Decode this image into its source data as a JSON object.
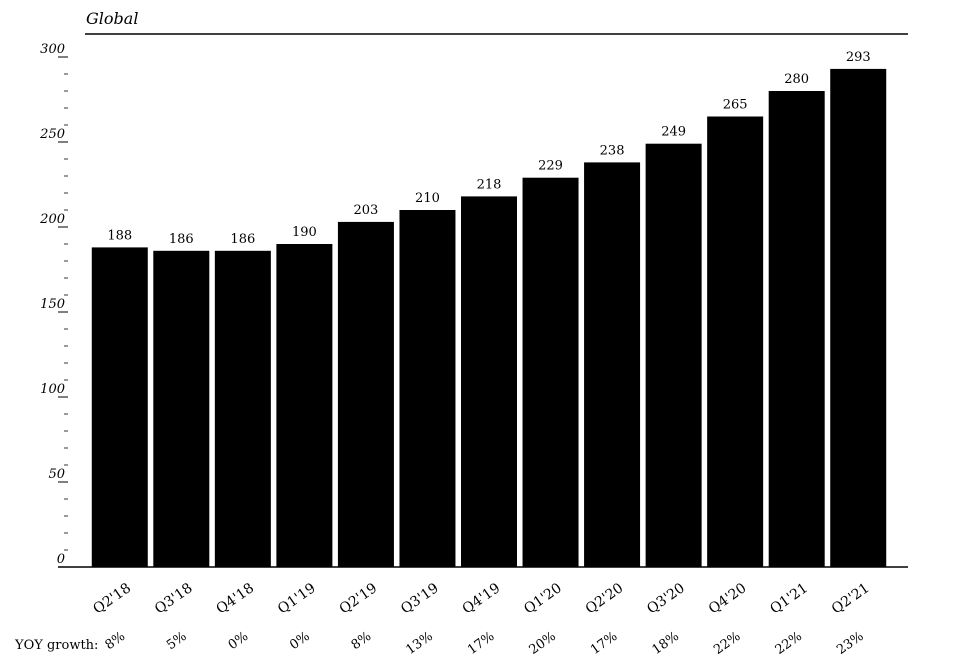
{
  "chart_data": {
    "type": "bar",
    "title": "Global",
    "categories": [
      "Q2'18",
      "Q3'18",
      "Q4'18",
      "Q1'19",
      "Q2'19",
      "Q3'19",
      "Q4'19",
      "Q1'20",
      "Q2'20",
      "Q3'20",
      "Q4'20",
      "Q1'21",
      "Q2'21"
    ],
    "values": [
      188,
      186,
      186,
      190,
      203,
      210,
      218,
      229,
      238,
      249,
      265,
      280,
      293
    ],
    "color": "#000000",
    "ylim": [
      0,
      300
    ],
    "yticks": [
      0,
      50,
      100,
      150,
      200,
      250,
      300
    ],
    "growth_label": "YOY growth:",
    "growth": [
      "8%",
      "5%",
      "0%",
      "0%",
      "8%",
      "13%",
      "17%",
      "20%",
      "17%",
      "18%",
      "22%",
      "22%",
      "23%"
    ]
  }
}
